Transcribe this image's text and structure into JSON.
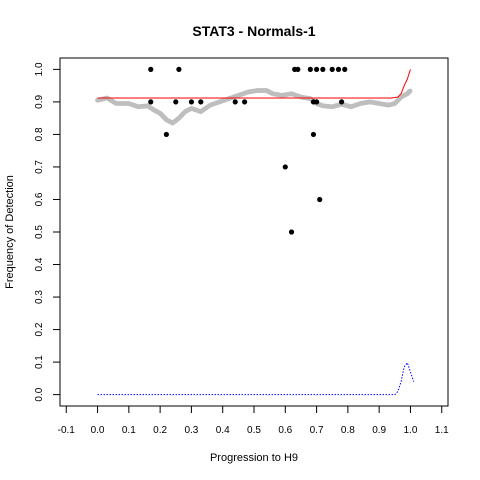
{
  "chart_data": {
    "type": "scatter",
    "title": "STAT3 - Normals-1",
    "xlabel": "Progression to H9",
    "ylabel": "Frequency of Detection",
    "xlim": [
      -0.12,
      1.12
    ],
    "ylim": [
      -0.035,
      1.035
    ],
    "x_ticks": [
      -0.1,
      0.0,
      0.1,
      0.2,
      0.3,
      0.4,
      0.5,
      0.6,
      0.7,
      0.8,
      0.9,
      1.0,
      1.1
    ],
    "x_tick_labels": [
      "-0.1",
      "0.0",
      "0.1",
      "0.2",
      "0.3",
      "0.4",
      "0.5",
      "0.6",
      "0.7",
      "0.8",
      "0.9",
      "1.0",
      "1.1"
    ],
    "y_ticks": [
      0.0,
      0.1,
      0.2,
      0.3,
      0.4,
      0.5,
      0.6,
      0.7,
      0.8,
      0.9,
      1.0
    ],
    "y_tick_labels": [
      "0.0",
      "0.1",
      "0.2",
      "0.3",
      "0.4",
      "0.5",
      "0.6",
      "0.7",
      "0.8",
      "0.9",
      "1.0"
    ],
    "grid": false,
    "colors": {
      "observed_points": "#000000",
      "smoothed_frequency": "#bebebe",
      "fit_line": "#ff0000",
      "density_line": "#0000ff"
    },
    "series": [
      {
        "kind": "points",
        "values": [
          [
            0.17,
            1.0
          ],
          [
            0.26,
            1.0
          ],
          [
            0.63,
            1.0
          ],
          [
            0.64,
            1.0
          ],
          [
            0.68,
            1.0
          ],
          [
            0.7,
            1.0
          ],
          [
            0.72,
            1.0
          ],
          [
            0.75,
            1.0
          ],
          [
            0.77,
            1.0
          ],
          [
            0.79,
            1.0
          ],
          [
            0.17,
            0.9
          ],
          [
            0.25,
            0.9
          ],
          [
            0.3,
            0.9
          ],
          [
            0.33,
            0.9
          ],
          [
            0.44,
            0.9
          ],
          [
            0.47,
            0.9
          ],
          [
            0.69,
            0.9
          ],
          [
            0.7,
            0.9
          ],
          [
            0.78,
            0.9
          ],
          [
            0.22,
            0.8
          ],
          [
            0.69,
            0.8
          ],
          [
            0.6,
            0.7
          ],
          [
            0.71,
            0.6
          ],
          [
            0.62,
            0.5
          ]
        ]
      },
      {
        "kind": "smoothed",
        "values": [
          [
            0.0,
            0.905
          ],
          [
            0.03,
            0.912
          ],
          [
            0.06,
            0.895
          ],
          [
            0.1,
            0.895
          ],
          [
            0.13,
            0.885
          ],
          [
            0.16,
            0.888
          ],
          [
            0.18,
            0.875
          ],
          [
            0.2,
            0.865
          ],
          [
            0.21,
            0.855
          ],
          [
            0.22,
            0.845
          ],
          [
            0.24,
            0.835
          ],
          [
            0.26,
            0.85
          ],
          [
            0.28,
            0.87
          ],
          [
            0.3,
            0.88
          ],
          [
            0.33,
            0.87
          ],
          [
            0.36,
            0.89
          ],
          [
            0.39,
            0.9
          ],
          [
            0.42,
            0.91
          ],
          [
            0.45,
            0.92
          ],
          [
            0.48,
            0.93
          ],
          [
            0.51,
            0.935
          ],
          [
            0.54,
            0.935
          ],
          [
            0.56,
            0.925
          ],
          [
            0.59,
            0.92
          ],
          [
            0.62,
            0.925
          ],
          [
            0.65,
            0.915
          ],
          [
            0.68,
            0.91
          ],
          [
            0.7,
            0.895
          ],
          [
            0.72,
            0.888
          ],
          [
            0.75,
            0.885
          ],
          [
            0.78,
            0.893
          ],
          [
            0.81,
            0.885
          ],
          [
            0.84,
            0.895
          ],
          [
            0.87,
            0.9
          ],
          [
            0.9,
            0.895
          ],
          [
            0.93,
            0.89
          ],
          [
            0.95,
            0.895
          ],
          [
            0.97,
            0.915
          ],
          [
            0.99,
            0.925
          ],
          [
            1.0,
            0.935
          ]
        ]
      },
      {
        "kind": "fit",
        "values": [
          [
            0.0,
            0.912
          ],
          [
            0.2,
            0.912
          ],
          [
            0.4,
            0.912
          ],
          [
            0.6,
            0.912
          ],
          [
            0.8,
            0.912
          ],
          [
            0.94,
            0.912
          ],
          [
            0.96,
            0.915
          ],
          [
            0.97,
            0.925
          ],
          [
            0.98,
            0.95
          ],
          [
            0.99,
            0.97
          ],
          [
            1.0,
            1.0
          ]
        ]
      },
      {
        "kind": "density",
        "values": [
          [
            0.0,
            0.0
          ],
          [
            0.2,
            0.0
          ],
          [
            0.4,
            0.0
          ],
          [
            0.6,
            0.0
          ],
          [
            0.8,
            0.0
          ],
          [
            0.95,
            0.0
          ],
          [
            0.96,
            0.01
          ],
          [
            0.97,
            0.04
          ],
          [
            0.98,
            0.085
          ],
          [
            0.99,
            0.098
          ],
          [
            1.0,
            0.07
          ],
          [
            1.01,
            0.04
          ]
        ]
      }
    ]
  }
}
